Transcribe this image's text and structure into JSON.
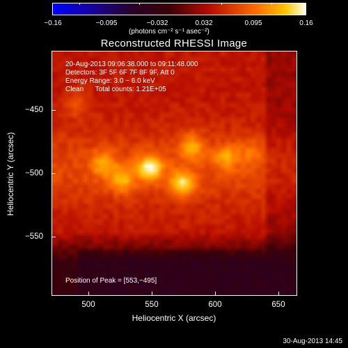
{
  "colorbar": {
    "ticks": [
      "−0.16",
      "−0.095",
      "−0.032",
      "0.032",
      "0.095",
      "0.16"
    ],
    "unit_label": "(photons cm⁻² s⁻¹ asec⁻²)"
  },
  "title": "Reconstructed RHESSI Image",
  "info": {
    "time_range": "20‑Aug‑2013 09:06:38.000 to 09:11:48.000",
    "detectors": "Detectors: 3F 5F 6F 7F 8F 9F, Att 0",
    "energy_range": "Energy Range: 3.0 − 6.0 keV",
    "method_counts": "Clean      Total counts: 1.21E+05",
    "peak_position": "Position of Peak = [553,−495]"
  },
  "axes": {
    "xlabel": "Heliocentric X (arcsec)",
    "ylabel": "Heliocentric Y (arcsec)",
    "xticks": [
      "500",
      "550",
      "600",
      "650"
    ],
    "yticks": [
      "−450",
      "−500",
      "−550"
    ]
  },
  "footer": "30‑Aug‑2013 14:45",
  "chart_data": {
    "type": "heatmap",
    "title": "Reconstructed RHESSI Image",
    "xlabel": "Heliocentric X (arcsec)",
    "ylabel": "Heliocentric Y (arcsec)",
    "xlim": [
      470,
      663
    ],
    "ylim": [
      -596,
      -403
    ],
    "colorbar_range": [
      -0.16,
      0.16
    ],
    "colormap": "red-temperature",
    "peak": [
      553,
      -495
    ],
    "sources": [
      {
        "x": 547,
        "y": -495,
        "value": 0.16
      },
      {
        "x": 573,
        "y": -508,
        "value": 0.15
      },
      {
        "x": 525,
        "y": -505,
        "value": 0.12
      },
      {
        "x": 510,
        "y": -492,
        "value": 0.11
      },
      {
        "x": 580,
        "y": -478,
        "value": 0.12
      },
      {
        "x": 607,
        "y": -486,
        "value": 0.11
      },
      {
        "x": 490,
        "y": -445,
        "value": 0.09
      },
      {
        "x": 627,
        "y": -482,
        "value": 0.08
      }
    ],
    "background_value": 0.045,
    "lower_region_value": -0.02
  }
}
